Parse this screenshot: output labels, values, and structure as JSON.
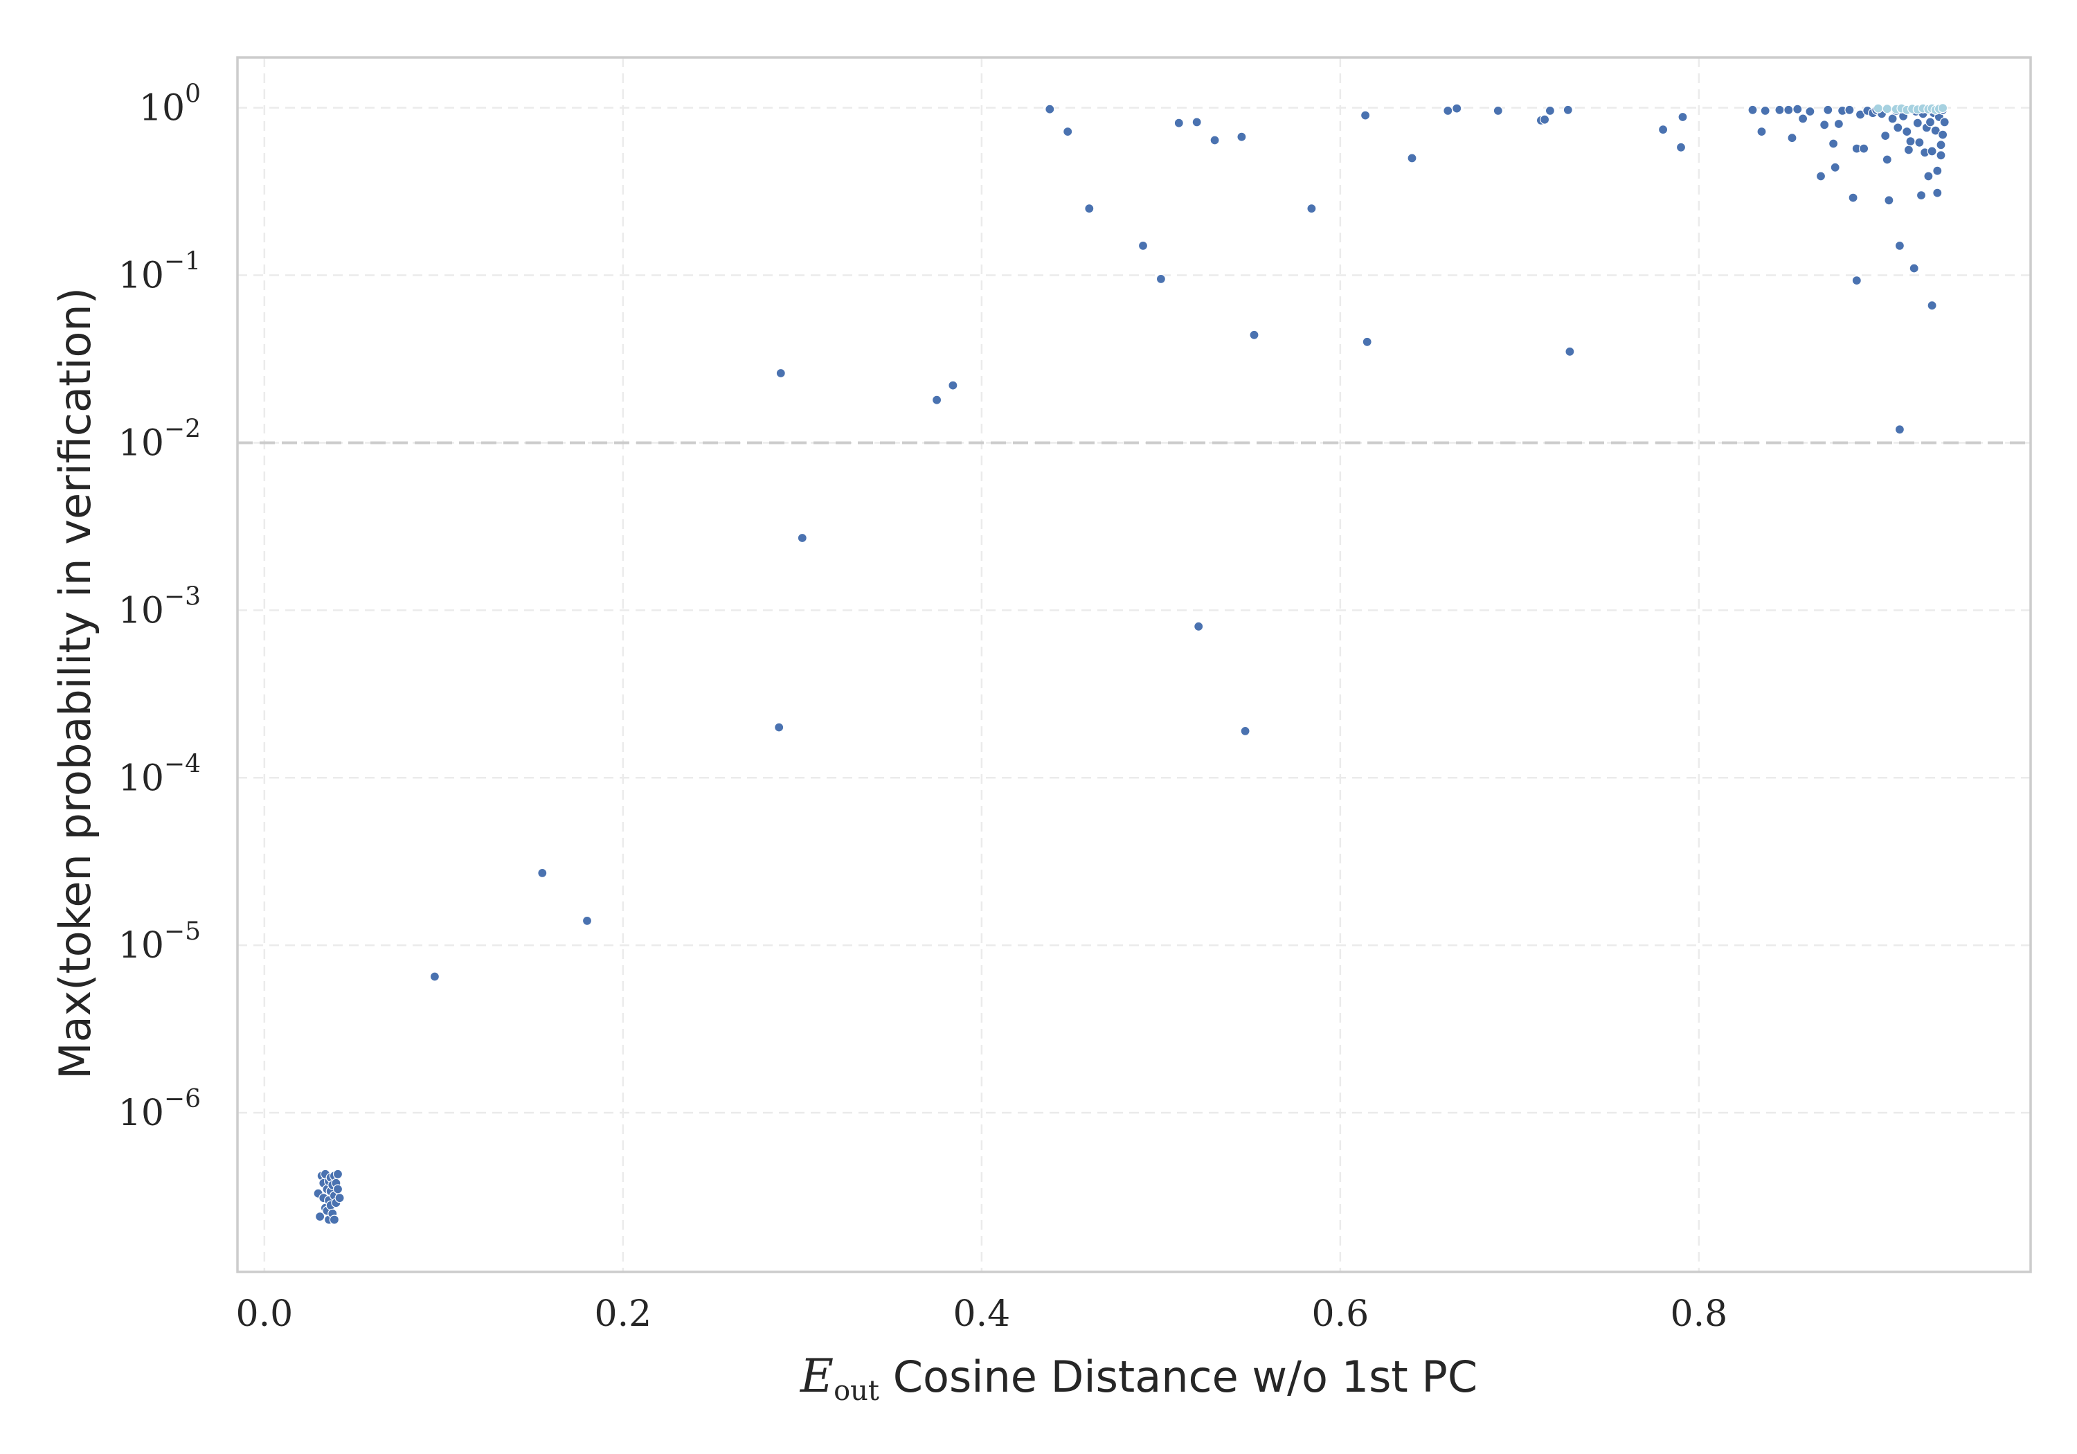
{
  "chart_data": {
    "type": "scatter",
    "title": "",
    "xlabel": {
      "symbol": "E",
      "subscript": "out",
      "text": "Cosine Distance w/o 1st PC"
    },
    "ylabel": "Max(token probability in verification)",
    "x_scale": "linear",
    "y_scale": "log",
    "xlim": [
      -0.015,
      0.985
    ],
    "ylim_log10": [
      -6.95,
      0.3
    ],
    "x_ticks": [
      {
        "value": 0.0,
        "label": "0.0"
      },
      {
        "value": 0.2,
        "label": "0.2"
      },
      {
        "value": 0.4,
        "label": "0.4"
      },
      {
        "value": 0.6,
        "label": "0.6"
      },
      {
        "value": 0.8,
        "label": "0.8"
      }
    ],
    "y_ticks": [
      {
        "value": 1,
        "base": "10",
        "exp": "0"
      },
      {
        "value": 0.1,
        "base": "10",
        "exp": "−1"
      },
      {
        "value": 0.01,
        "base": "10",
        "exp": "−2"
      },
      {
        "value": 0.001,
        "base": "10",
        "exp": "−3"
      },
      {
        "value": 0.0001,
        "base": "10",
        "exp": "−4"
      },
      {
        "value": 1e-05,
        "base": "10",
        "exp": "−5"
      },
      {
        "value": 1e-06,
        "base": "10",
        "exp": "−6"
      }
    ],
    "grid": true,
    "reference_line": {
      "axis": "y",
      "value": 0.01,
      "style": "dashed",
      "color": "#cccccc"
    },
    "series": [
      {
        "color": "#4a72b0",
        "points": [
          [
            0.03,
            3.3e-07
          ],
          [
            0.031,
            2.4e-07
          ],
          [
            0.032,
            4.2e-07
          ],
          [
            0.033,
            3.8e-07
          ],
          [
            0.033,
            3.1e-07
          ],
          [
            0.034,
            2.7e-07
          ],
          [
            0.034,
            4.3e-07
          ],
          [
            0.035,
            3.5e-07
          ],
          [
            0.035,
            2.6e-07
          ],
          [
            0.036,
            3.9e-07
          ],
          [
            0.036,
            3e-07
          ],
          [
            0.036,
            2.3e-07
          ],
          [
            0.037,
            4.1e-07
          ],
          [
            0.037,
            3.4e-07
          ],
          [
            0.037,
            2.8e-07
          ],
          [
            0.038,
            3.7e-07
          ],
          [
            0.038,
            2.5e-07
          ],
          [
            0.039,
            4.2e-07
          ],
          [
            0.039,
            3.2e-07
          ],
          [
            0.039,
            2.3e-07
          ],
          [
            0.04,
            3.8e-07
          ],
          [
            0.04,
            2.9e-07
          ],
          [
            0.041,
            3.5e-07
          ],
          [
            0.041,
            4.3e-07
          ],
          [
            0.042,
            3.1e-07
          ],
          [
            0.095,
            6.5e-06
          ],
          [
            0.155,
            2.7e-05
          ],
          [
            0.18,
            1.4e-05
          ],
          [
            0.287,
            0.0002
          ],
          [
            0.288,
            0.026
          ],
          [
            0.3,
            0.0027
          ],
          [
            0.375,
            0.018
          ],
          [
            0.384,
            0.022
          ],
          [
            0.438,
            0.98
          ],
          [
            0.448,
            0.72
          ],
          [
            0.46,
            0.25
          ],
          [
            0.49,
            0.15
          ],
          [
            0.5,
            0.095
          ],
          [
            0.51,
            0.81
          ],
          [
            0.52,
            0.82
          ],
          [
            0.521,
            0.0008
          ],
          [
            0.53,
            0.64
          ],
          [
            0.545,
            0.67
          ],
          [
            0.547,
            0.00019
          ],
          [
            0.552,
            0.044
          ],
          [
            0.584,
            0.25
          ],
          [
            0.614,
            0.9
          ],
          [
            0.615,
            0.04
          ],
          [
            0.64,
            0.5
          ],
          [
            0.66,
            0.96
          ],
          [
            0.665,
            0.99
          ],
          [
            0.688,
            0.96
          ],
          [
            0.712,
            0.84
          ],
          [
            0.714,
            0.85
          ],
          [
            0.717,
            0.96
          ],
          [
            0.727,
            0.97
          ],
          [
            0.728,
            0.035
          ],
          [
            0.78,
            0.74
          ],
          [
            0.79,
            0.58
          ],
          [
            0.791,
            0.88
          ],
          [
            0.83,
            0.97
          ],
          [
            0.835,
            0.72
          ],
          [
            0.837,
            0.96
          ],
          [
            0.845,
            0.97
          ],
          [
            0.85,
            0.97
          ],
          [
            0.852,
            0.66
          ],
          [
            0.855,
            0.98
          ],
          [
            0.858,
            0.86
          ],
          [
            0.862,
            0.95
          ],
          [
            0.868,
            0.39
          ],
          [
            0.87,
            0.79
          ],
          [
            0.872,
            0.97
          ],
          [
            0.875,
            0.61
          ],
          [
            0.876,
            0.44
          ],
          [
            0.878,
            0.8
          ],
          [
            0.88,
            0.96
          ],
          [
            0.884,
            0.97
          ],
          [
            0.886,
            0.29
          ],
          [
            0.888,
            0.57
          ],
          [
            0.888,
            0.093
          ],
          [
            0.89,
            0.91
          ],
          [
            0.892,
            0.57
          ],
          [
            0.894,
            0.96
          ],
          [
            0.897,
            0.93
          ],
          [
            0.899,
            0.97
          ],
          [
            0.902,
            0.92
          ],
          [
            0.904,
            0.68
          ],
          [
            0.905,
            0.49
          ],
          [
            0.906,
            0.28
          ],
          [
            0.908,
            0.86
          ],
          [
            0.91,
            0.96
          ],
          [
            0.911,
            0.76
          ],
          [
            0.912,
            0.15
          ],
          [
            0.912,
            0.012
          ],
          [
            0.914,
            0.89
          ],
          [
            0.916,
            0.72
          ],
          [
            0.917,
            0.56
          ],
          [
            0.918,
            0.63
          ],
          [
            0.92,
            0.11
          ],
          [
            0.921,
            0.95
          ],
          [
            0.922,
            0.81
          ],
          [
            0.923,
            0.62
          ],
          [
            0.924,
            0.3
          ],
          [
            0.925,
            0.92
          ],
          [
            0.926,
            0.54
          ],
          [
            0.927,
            0.76
          ],
          [
            0.928,
            0.39
          ],
          [
            0.929,
            0.82
          ],
          [
            0.93,
            0.55
          ],
          [
            0.93,
            0.066
          ],
          [
            0.931,
            0.93
          ],
          [
            0.932,
            0.73
          ],
          [
            0.933,
            0.42
          ],
          [
            0.933,
            0.31
          ],
          [
            0.934,
            0.88
          ],
          [
            0.935,
            0.6
          ],
          [
            0.935,
            0.52
          ],
          [
            0.936,
            0.97
          ],
          [
            0.936,
            0.69
          ],
          [
            0.937,
            0.82
          ]
        ]
      },
      {
        "color": "#a6d1e0",
        "points": [
          [
            0.9,
            0.99
          ],
          [
            0.905,
            0.985
          ],
          [
            0.91,
            0.98
          ],
          [
            0.913,
            0.99
          ],
          [
            0.916,
            0.97
          ],
          [
            0.919,
            0.985
          ],
          [
            0.922,
            0.975
          ],
          [
            0.925,
            0.99
          ],
          [
            0.928,
            0.98
          ],
          [
            0.93,
            0.99
          ],
          [
            0.932,
            0.97
          ],
          [
            0.934,
            0.985
          ],
          [
            0.936,
            0.995
          ]
        ]
      }
    ]
  }
}
